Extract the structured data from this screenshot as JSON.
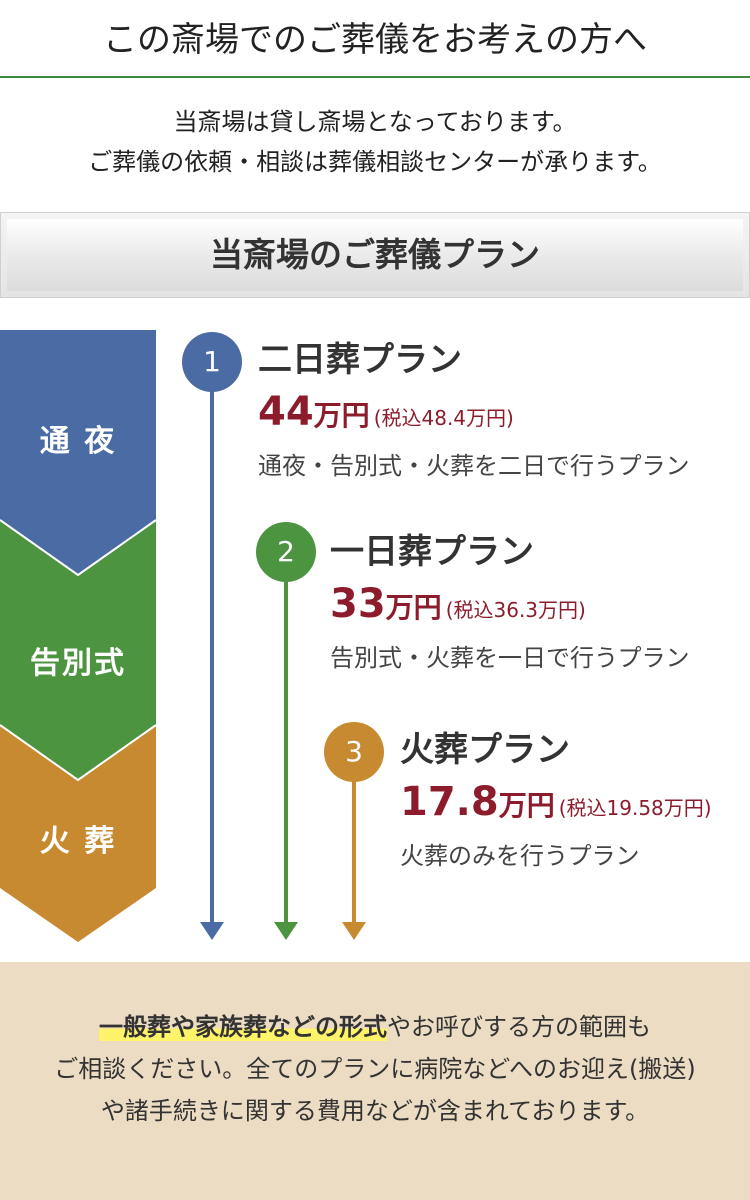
{
  "header": {
    "title": "この斎場でのご葬儀をお考えの方へ"
  },
  "intro": {
    "line1": "当斎場は貸し斎場となっております。",
    "line2": "ご葬儀の依頼・相談は葬儀相談センターが承ります。"
  },
  "plan_heading": "当斎場のご葬儀プラン",
  "stages": [
    {
      "label": "通 夜",
      "color": "#4a6ba3"
    },
    {
      "label": "告別式",
      "color": "#4c9440"
    },
    {
      "label": "火 葬",
      "color": "#c88a31"
    }
  ],
  "plans": [
    {
      "number": "1",
      "name": "二日葬プラン",
      "price": "44",
      "unit": "万円",
      "tax": "(税込48.4万円)",
      "desc": "通夜・告別式・火葬を二日で行うプラン",
      "color": "#4a6ba3"
    },
    {
      "number": "2",
      "name": "一日葬プラン",
      "price": "33",
      "unit": "万円",
      "tax": "(税込36.3万円)",
      "desc": "告別式・火葬を一日で行うプラン",
      "color": "#4c9440"
    },
    {
      "number": "3",
      "name": "火葬プラン",
      "price": "17.8",
      "unit": "万円",
      "tax": "(税込19.58万円)",
      "desc": "火葬のみを行うプラン",
      "color": "#c88a31"
    }
  ],
  "footer": {
    "highlight": "一般葬や家族葬などの形式",
    "line1_rest": "やお呼びする方の範囲も",
    "line2": "ご相談ください。全てのプランに病院などへのお迎え(搬送)",
    "line3": "や諸手続きに関する費用などが含まれております。"
  }
}
